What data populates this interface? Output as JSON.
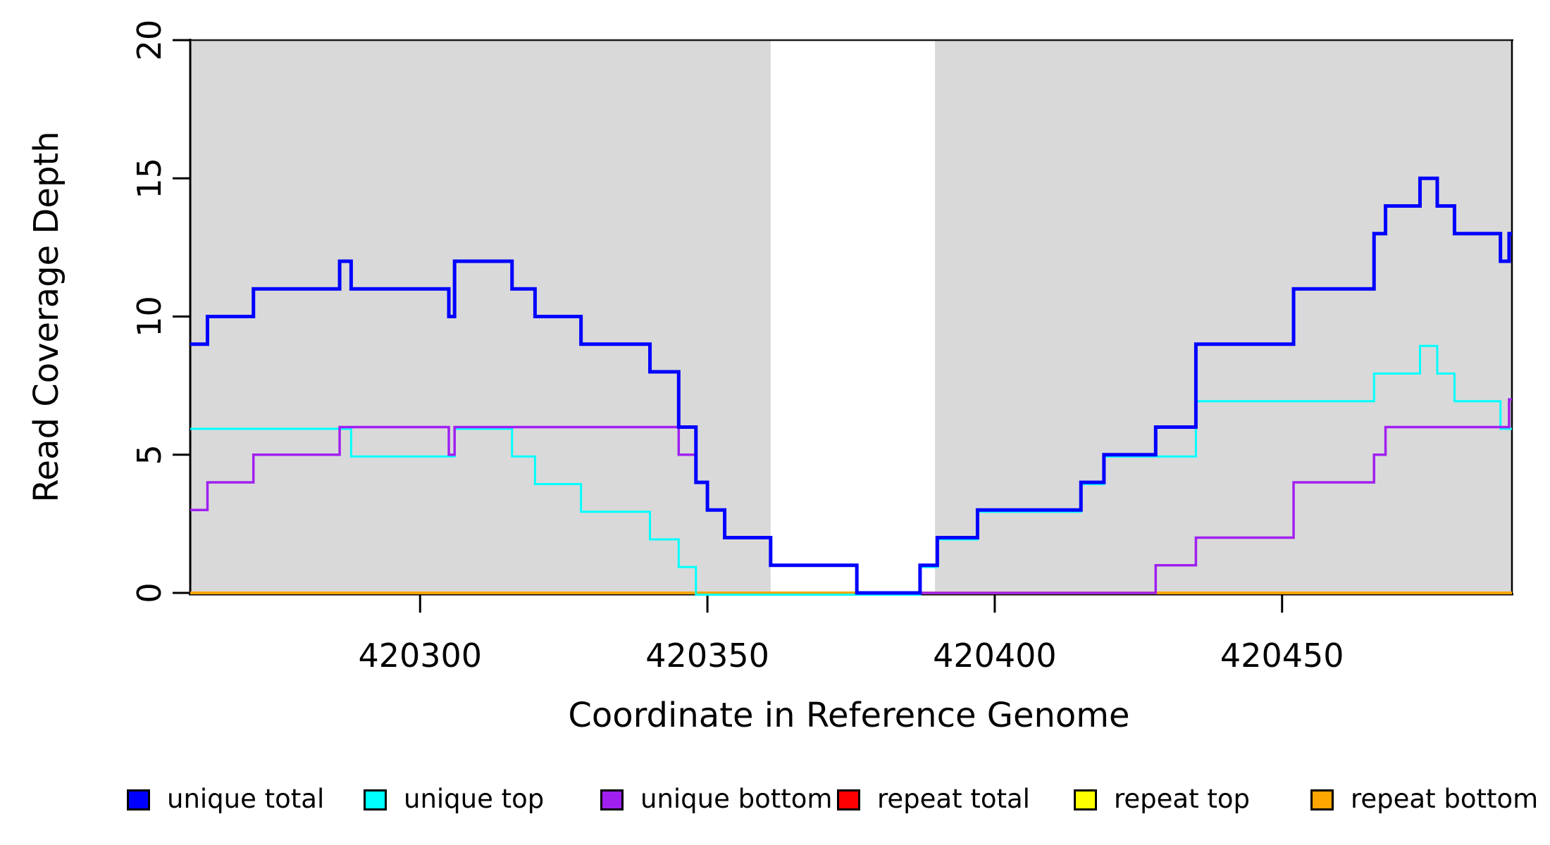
{
  "figure": {
    "xlabel": "Coordinate in Reference Genome",
    "ylabel": "Read Coverage Depth"
  },
  "legend": {
    "entries": [
      {
        "label": "unique total",
        "color": "#0000FF"
      },
      {
        "label": "unique top",
        "color": "#00FFFF"
      },
      {
        "label": "unique bottom",
        "color": "#A020F0"
      },
      {
        "label": "repeat total",
        "color": "#FF0000"
      },
      {
        "label": "repeat top",
        "color": "#FFFF00"
      },
      {
        "label": "repeat bottom",
        "color": "#FFA500"
      }
    ]
  },
  "colors": {
    "shaded_region": "#D9D9D9",
    "background": "#FFFFFF",
    "axis": "#000000"
  },
  "chart_data": {
    "type": "line",
    "subtype": "step",
    "title": "",
    "xlabel": "Coordinate in Reference Genome",
    "ylabel": "Read Coverage Depth",
    "xlim": [
      420260,
      420490
    ],
    "ylim": [
      0,
      20
    ],
    "xticks": [
      420300,
      420350,
      420400,
      420450
    ],
    "xticklabels": [
      "420300",
      "420350",
      "420400",
      "420450"
    ],
    "yticks": [
      0,
      5,
      10,
      15,
      20
    ],
    "yticklabels": [
      "0",
      "5",
      "10",
      "15",
      "20"
    ],
    "ytick_label_rotation": 90,
    "grid": false,
    "legend_position": "bottom",
    "shaded_regions": [
      {
        "from": 420260,
        "to": 420361,
        "color": "#D9D9D9"
      },
      {
        "from": 420389.6,
        "to": 420490,
        "color": "#D9D9D9"
      }
    ],
    "series": [
      {
        "name": "repeat total",
        "color": "#FF0000",
        "width": 3,
        "steps": [
          [
            420260,
            0
          ]
        ]
      },
      {
        "name": "repeat top",
        "color": "#FFFF00",
        "width": 3,
        "steps": [
          [
            420260,
            0
          ]
        ]
      },
      {
        "name": "repeat bottom",
        "color": "#FFA500",
        "width": 4,
        "steps": [
          [
            420260,
            0
          ]
        ]
      },
      {
        "name": "unique top",
        "color": "#00FFFF",
        "width": 3,
        "steps": [
          [
            420260,
            6
          ],
          [
            420288,
            5
          ],
          [
            420306,
            6
          ],
          [
            420316,
            5
          ],
          [
            420320,
            4
          ],
          [
            420328,
            3
          ],
          [
            420340,
            2
          ],
          [
            420345,
            1
          ],
          [
            420348,
            0
          ],
          [
            420387,
            1
          ],
          [
            420390,
            2
          ],
          [
            420397,
            3
          ],
          [
            420415,
            4
          ],
          [
            420419,
            5
          ],
          [
            420435,
            7
          ],
          [
            420466,
            8
          ],
          [
            420474,
            9
          ],
          [
            420477,
            8
          ],
          [
            420480,
            7
          ],
          [
            420488,
            6
          ]
        ]
      },
      {
        "name": "unique bottom",
        "color": "#A020F0",
        "width": 3.5,
        "steps": [
          [
            420260,
            3
          ],
          [
            420263,
            4
          ],
          [
            420271,
            5
          ],
          [
            420286,
            6
          ],
          [
            420305,
            5
          ],
          [
            420306,
            6
          ],
          [
            420345,
            5
          ],
          [
            420348,
            4
          ],
          [
            420350,
            3
          ],
          [
            420353,
            2
          ],
          [
            420361,
            1
          ],
          [
            420376,
            0
          ],
          [
            420428,
            1
          ],
          [
            420435,
            2
          ],
          [
            420452,
            4
          ],
          [
            420466,
            5
          ],
          [
            420468,
            6
          ],
          [
            420489.5,
            7
          ]
        ]
      },
      {
        "name": "unique total",
        "color": "#0000FF",
        "width": 5,
        "steps": [
          [
            420260,
            9
          ],
          [
            420263,
            10
          ],
          [
            420271,
            11
          ],
          [
            420286,
            12
          ],
          [
            420288,
            11
          ],
          [
            420305,
            10
          ],
          [
            420306,
            12
          ],
          [
            420316,
            11
          ],
          [
            420320,
            10
          ],
          [
            420328,
            9
          ],
          [
            420340,
            8
          ],
          [
            420345,
            6
          ],
          [
            420348,
            4
          ],
          [
            420350,
            3
          ],
          [
            420353,
            2
          ],
          [
            420361,
            1
          ],
          [
            420376,
            0
          ],
          [
            420387,
            1
          ],
          [
            420390,
            2
          ],
          [
            420397,
            3
          ],
          [
            420415,
            4
          ],
          [
            420419,
            5
          ],
          [
            420428,
            6
          ],
          [
            420435,
            9
          ],
          [
            420452,
            11
          ],
          [
            420466,
            13
          ],
          [
            420468,
            14
          ],
          [
            420474,
            15
          ],
          [
            420477,
            14
          ],
          [
            420480,
            13
          ],
          [
            420488,
            12
          ],
          [
            420489.5,
            13
          ]
        ]
      }
    ]
  }
}
